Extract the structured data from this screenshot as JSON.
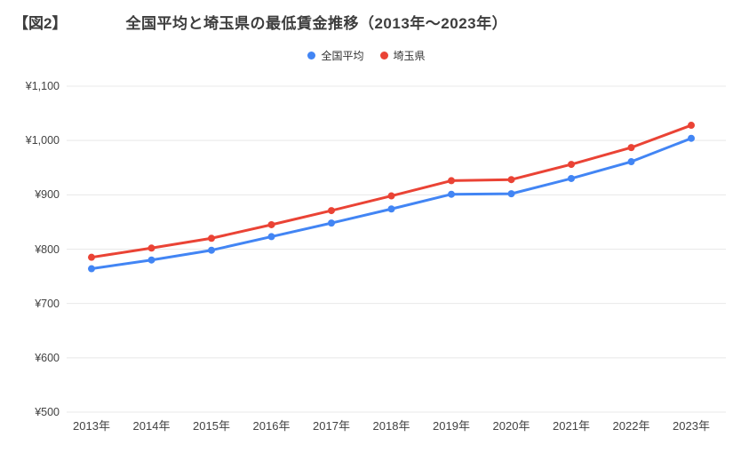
{
  "header": {
    "figure_label": "【図2】",
    "title": "全国平均と埼玉県の最低賃金推移（2013年〜2023年）"
  },
  "chart_data": {
    "type": "line",
    "title": "全国平均と埼玉県の最低賃金推移（2013年〜2023年）",
    "categories": [
      "2013年",
      "2014年",
      "2015年",
      "2016年",
      "2017年",
      "2018年",
      "2019年",
      "2020年",
      "2021年",
      "2022年",
      "2023年"
    ],
    "series": [
      {
        "name": "全国平均",
        "color": "#4285F4",
        "values": [
          764,
          780,
          798,
          823,
          848,
          874,
          901,
          902,
          930,
          961,
          1004
        ]
      },
      {
        "name": "埼玉県",
        "color": "#EA4335",
        "values": [
          785,
          802,
          820,
          845,
          871,
          898,
          926,
          928,
          956,
          987,
          1028
        ]
      }
    ],
    "y_ticks": [
      {
        "value": 500,
        "label": "¥500"
      },
      {
        "value": 600,
        "label": "¥600"
      },
      {
        "value": 700,
        "label": "¥700"
      },
      {
        "value": 800,
        "label": "¥800"
      },
      {
        "value": 900,
        "label": "¥900"
      },
      {
        "value": 1000,
        "label": "¥1,000"
      },
      {
        "value": 1100,
        "label": "¥1,100"
      }
    ],
    "ylim": [
      500,
      1100
    ],
    "xlabel": "",
    "ylabel": "",
    "grid": true,
    "legend_position": "top"
  },
  "colors": {
    "title_text": "#3d3d3d",
    "axis_label_text": "#424242",
    "gridline": "#e8e8e8",
    "background": "#ffffff",
    "series_blue": "#4285F4",
    "series_red": "#EA4335"
  }
}
